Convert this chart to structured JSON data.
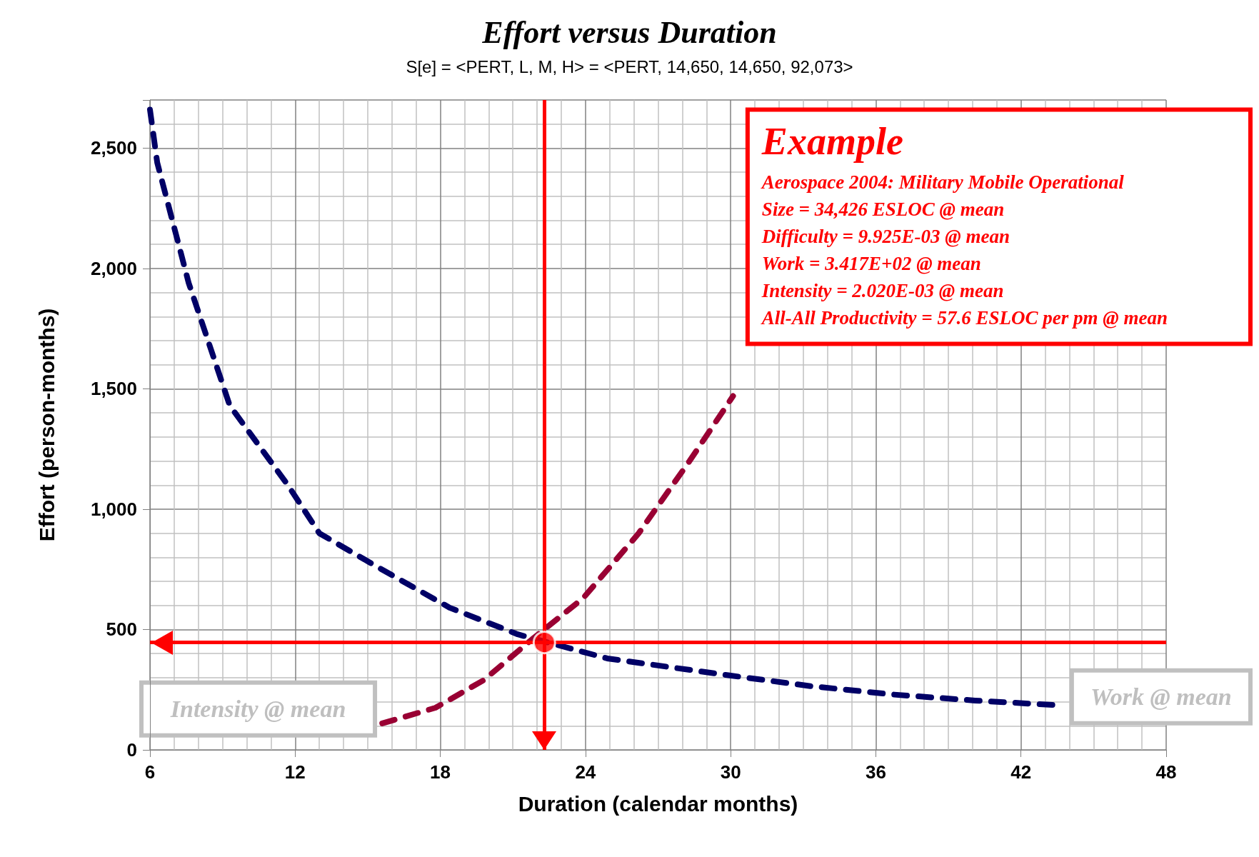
{
  "chart_data": {
    "type": "line",
    "title": "Effort versus Duration",
    "subtitle": "S[e] = <PERT, L, M, H> = <PERT, 14,650, 14,650, 92,073>",
    "xlabel": "Duration (calendar months)",
    "ylabel": "Effort (person-months)",
    "xlim": [
      6,
      48
    ],
    "xticks": [
      6,
      12,
      18,
      24,
      30,
      36,
      42,
      48
    ],
    "ylim": [
      0,
      2700
    ],
    "yticks": [
      0,
      {
        "value": 500,
        "label": "500"
      },
      {
        "value": 1000,
        "label": "1,000"
      },
      {
        "value": 1500,
        "label": "1,500"
      },
      {
        "value": 2000,
        "label": "2,000"
      },
      {
        "value": 2500,
        "label": "2,500"
      }
    ],
    "grid": true,
    "marker": "none",
    "line_style": "dashed",
    "series": [
      {
        "color": "#000066",
        "x": [
          6,
          6.3,
          7.6,
          9.3,
          11.7,
          13,
          15.4,
          18.4,
          21.2,
          24.9,
          29.9,
          33.3,
          36.7,
          40.1,
          43.6
        ],
        "values": [
          2660,
          2440,
          1940,
          1430,
          1100,
          900,
          760,
          590,
          480,
          380,
          310,
          265,
          230,
          205,
          185
        ]
      },
      {
        "color": "#990033",
        "x": [
          15.6,
          17.8,
          19.8,
          21.8,
          23.9,
          26.2,
          28.3,
          30.1
        ],
        "values": [
          110,
          175,
          290,
          460,
          630,
          900,
          1200,
          1470
        ]
      },
      {
        "type": "scatter",
        "color": "#ff0000",
        "x": [
          22.3
        ],
        "values": [
          446
        ],
        "marker": "circle"
      }
    ],
    "ref_lines": [
      {
        "axis": "x",
        "value": 22.3,
        "color": "#ff0000",
        "line_style": "solid"
      },
      {
        "axis": "y",
        "value": 446,
        "color": "#ff0000",
        "line_style": "solid"
      }
    ],
    "annotations": [
      "Example",
      "Aerospace 2004: Military Mobile Operational\nSize = 34,426 ESLOC @ mean\nDifficulty = 9.925E-03 @ mean\nWork = 3.417E+02 @ mean\nIntensity = 2.020E-03 @ mean\nAll-All Productivity = 57.6 ESLOC per pm @ mean",
      "Intensity @ mean",
      "Work @ mean"
    ]
  }
}
